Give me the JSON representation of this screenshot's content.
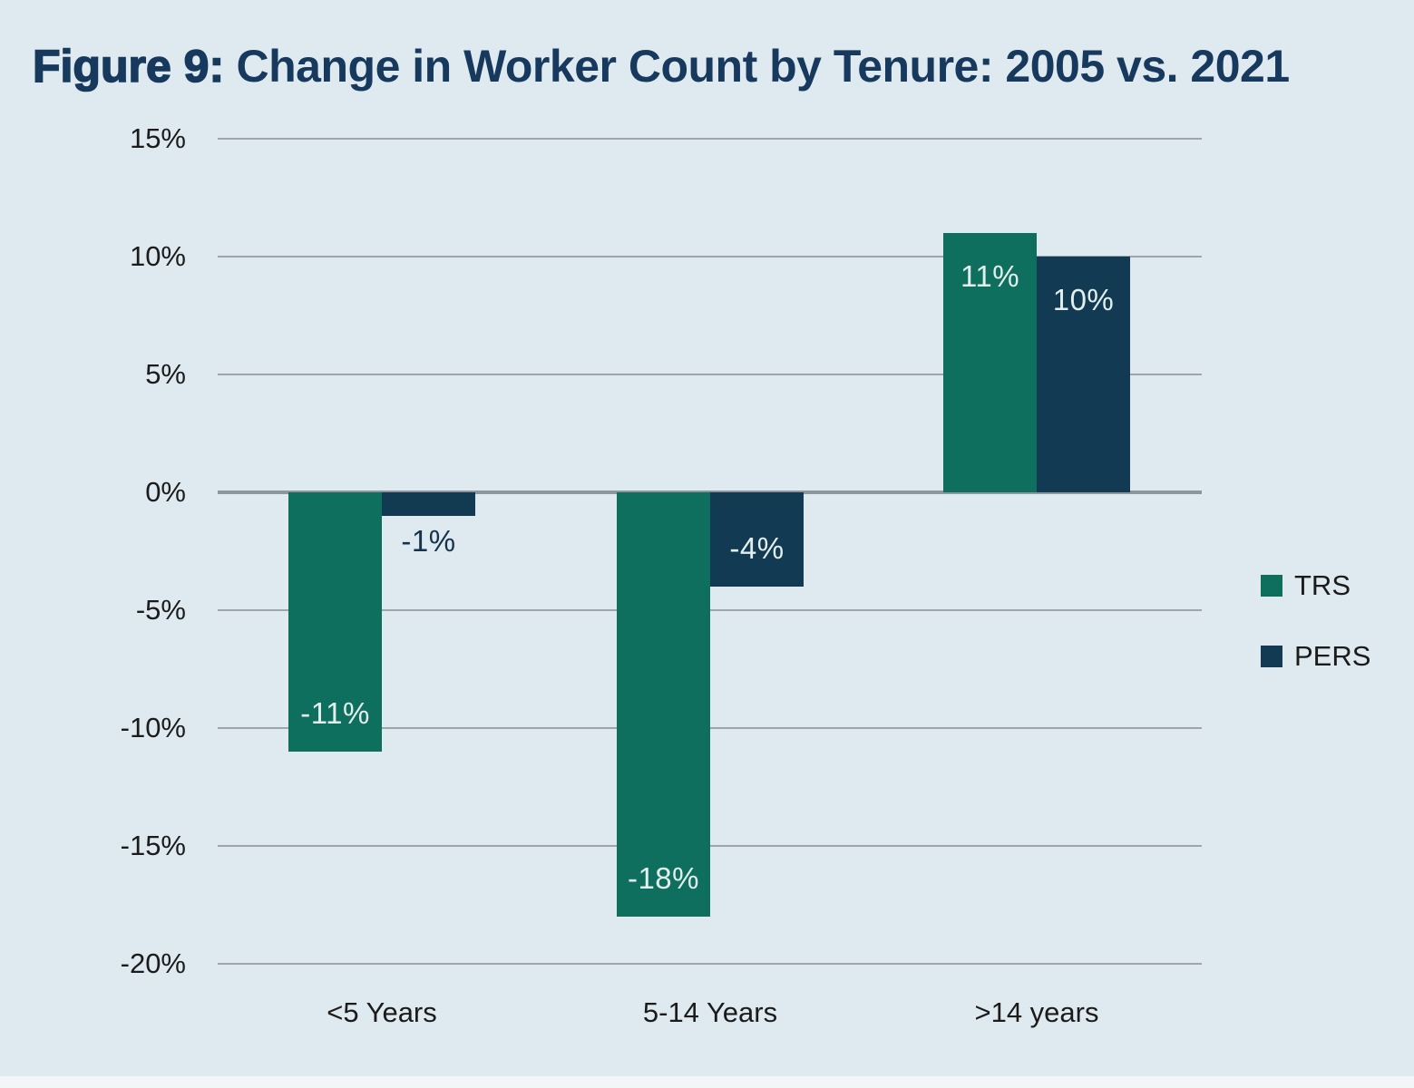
{
  "title": {
    "prefix": "Figure 9:",
    "rest": " Change in Worker Count by Tenure: 2005 vs. 2021"
  },
  "colors": {
    "background": "#dfeaf0",
    "title": "#16395d",
    "trs": "#0f6f5e",
    "pers": "#123a53",
    "gridline": "#9ea6ac",
    "zero_line": "#8d969d",
    "axis_text": "#1b1b1b",
    "bar_label_light": "#e3efec",
    "bar_label_dark": "#16334d"
  },
  "chart_data": {
    "type": "bar",
    "title": "Figure 9: Change in Worker Count by Tenure: 2005 vs. 2021",
    "categories": [
      "<5 Years",
      "5-14 Years",
      ">14 years"
    ],
    "series": [
      {
        "name": "TRS",
        "color": "#0f6f5e",
        "values": [
          -11,
          -18,
          11
        ],
        "labels": [
          "-11%",
          "-18%",
          "11%"
        ]
      },
      {
        "name": "PERS",
        "color": "#123a53",
        "values": [
          -1,
          -4,
          10
        ],
        "labels": [
          "-1%",
          "-4%",
          "10%"
        ]
      }
    ],
    "xlabel": "",
    "ylabel": "",
    "ylim": [
      -20,
      15
    ],
    "y_ticks": [
      "15%",
      "10%",
      "5%",
      "0%",
      "-5%",
      "-10%",
      "-15%",
      "-20%"
    ],
    "grid": "horizontal",
    "legend_position": "right"
  }
}
